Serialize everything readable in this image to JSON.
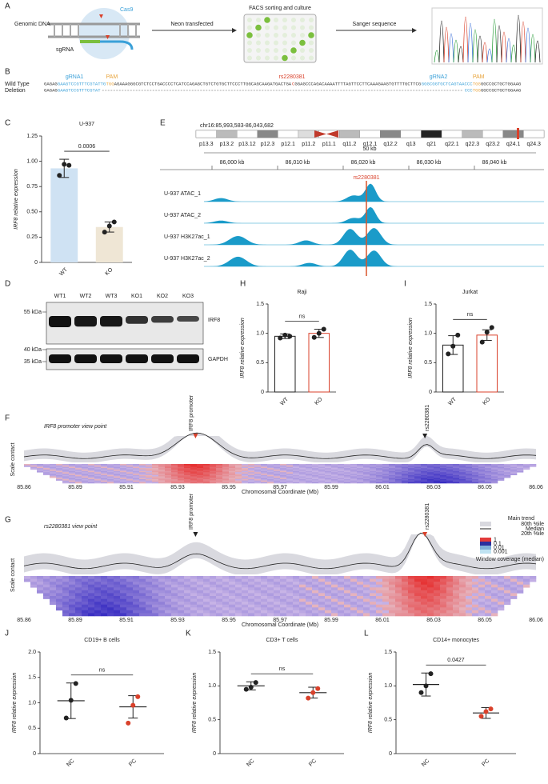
{
  "panels": [
    "A",
    "B",
    "C",
    "D",
    "E",
    "F",
    "G",
    "H",
    "I",
    "J",
    "K",
    "L"
  ],
  "schematic": {
    "genomic_dna": "Genomic DNA",
    "cas9": "Cas9",
    "sgrna": "sgRNA",
    "step1": "Neon transfected",
    "step2": "FACS sorting and culture",
    "step3": "Sanger sequence"
  },
  "sequence": {
    "rows": [
      "Wild Type",
      "Deletion"
    ],
    "gRNA1": "gRNA1",
    "pam1": "PAM",
    "snp": "rs2280381",
    "gRNA2": "gRNA2",
    "pam2": "PAM",
    "wild_type": [
      {
        "text": "GAGAG",
        "color": "#333333"
      },
      {
        "text": "GAAGTCCGTTTCGTATTG",
        "color": "#3aa0d8"
      },
      {
        "text": "TGG",
        "color": "#e8a33a"
      },
      {
        "text": "AGAAAGGGCGTCTCCTGACCCCTCATCCAGAGCTGTCTGTGCTTCCCTTGGCAGCAAGATGACTGA",
        "color": "#333333"
      },
      {
        "text": "C",
        "color": "#d9412b"
      },
      {
        "text": "GGAGCCCAGACAAAATTTTAGTTCCTTCAAAGAAGTGTTTTGCTTCG",
        "color": "#333333"
      },
      {
        "text": "GGGCGGTGCTCAGTAACCC",
        "color": "#3aa0d8"
      },
      {
        "text": "TGG",
        "color": "#e8a33a"
      },
      {
        "text": "GGCCGCTGCTGGAAG",
        "color": "#333333"
      }
    ],
    "deletion_head": [
      {
        "text": "GAGAG",
        "color": "#333333"
      },
      {
        "text": "GAAGTCCGTTTCGTAT",
        "color": "#3aa0d8"
      }
    ],
    "deletion_tail": [
      {
        "text": "CCC",
        "color": "#3aa0d8"
      },
      {
        "text": "TGG",
        "color": "#e8a33a"
      },
      {
        "text": "GGCCGCTGCTGGAAG",
        "color": "#333333"
      }
    ]
  },
  "western": {
    "lanes": [
      "WT1",
      "WT2",
      "WT3",
      "KO1",
      "KO2",
      "KO3"
    ],
    "markers": [
      "55 kDa",
      "40 kDa",
      "35 kDa"
    ],
    "proteins": [
      "IRF8",
      "GAPDH"
    ]
  },
  "genome": {
    "locus": "chr16:85,993,583-86,043,682",
    "cytobands": [
      "p13.3",
      "p13.2",
      "p13.12",
      "p12.3",
      "p12.1",
      "p11.2",
      "p11.1",
      "q11.2",
      "q12.1",
      "q12.2",
      "q13",
      "q21",
      "q22.1",
      "q22.3",
      "q23.2",
      "q24.1",
      "q24.3"
    ],
    "scale": "50 kb",
    "coordinates": [
      "86,000 kb",
      "86,010 kb",
      "86,020 kb",
      "86,030 kb",
      "86,040 kb"
    ],
    "snp": "rs2280381",
    "tracks": [
      "U-937 ATAC_1",
      "U-937 ATAC_2",
      "U-937 H3K27ac_1",
      "U-937 H3K27ac_2"
    ]
  },
  "hic": [
    {
      "title": "IRF8 promoter view point",
      "promoter": "IRF8 promoter",
      "snp": "rs2280381",
      "ylabel": "Scale contact",
      "xlabel": "Chromosomal Coordinate (Mb)",
      "xticks": [
        "85.86",
        "85.89",
        "85.91",
        "85.93",
        "85.95",
        "85.97",
        "85.99",
        "86.01",
        "86.03",
        "86.05",
        "86.06"
      ]
    },
    {
      "title": "rs2280381 view point",
      "promoter": "IRF8 promoter",
      "snp": "rs2280381",
      "ylabel": "Scale contact",
      "xlabel": "Chromosomal Coordinate (Mb)",
      "xticks": [
        "85.86",
        "85.89",
        "85.91",
        "85.93",
        "85.95",
        "85.97",
        "85.99",
        "86.01",
        "86.03",
        "86.05",
        "86.06"
      ],
      "legend": {
        "title": "Main trend",
        "upper": "80th %ile",
        "median": "Median",
        "lower": "20th %ile",
        "scale": [
          "1",
          "0.1",
          "0.01",
          "0.001"
        ],
        "coverage": "Window coverage (median)"
      }
    }
  ],
  "chart_data": [
    {
      "type": "bar",
      "title": "U-937",
      "ylabel": "IRF8 relative expression",
      "categories": [
        "WT",
        "KO"
      ],
      "values": [
        0.93,
        0.35
      ],
      "errors": [
        0.09,
        0.05
      ],
      "points": [
        [
          0.86,
          0.97,
          0.96
        ],
        [
          0.3,
          0.36,
          0.4
        ]
      ],
      "colors": [
        "#cfe2f3",
        "#efe6d5"
      ],
      "edge_colors": [
        "none",
        "none"
      ],
      "point_colors": [
        "#222222",
        "#222222"
      ],
      "annotation": "0.0006",
      "ylim": [
        0,
        1.25
      ],
      "yticks": [
        0,
        0.25,
        {
          "value": 0.5,
          "label": "0.50"
        },
        0.75,
        {
          "value": 1,
          "label": "1.00"
        },
        1.25
      ]
    },
    {
      "type": "bar",
      "title": "Raji",
      "ylabel": "IRF8 relative expression",
      "categories": [
        "WT",
        "KO"
      ],
      "values": [
        0.95,
        1.0
      ],
      "errors": [
        0.04,
        0.07
      ],
      "points": [
        [
          0.92,
          0.97,
          0.95
        ],
        [
          0.93,
          1.0,
          1.07
        ]
      ],
      "colors": [
        "#ffffff",
        "#ffffff"
      ],
      "edge_colors": [
        "#222222",
        "#d9412b"
      ],
      "point_colors": [
        "#222222",
        "#222222"
      ],
      "annotation": "ns",
      "ylim": [
        0,
        1.5
      ],
      "yticks": [
        0,
        0.5,
        {
          "value": 1,
          "label": "1.0"
        },
        1.5
      ]
    },
    {
      "type": "bar",
      "title": "Jurkat",
      "ylabel": "IRF8 relative expression",
      "categories": [
        "WT",
        "KO"
      ],
      "values": [
        0.8,
        0.97
      ],
      "errors": [
        0.16,
        0.09
      ],
      "points": [
        [
          0.65,
          0.78,
          0.97
        ],
        [
          0.85,
          1.02,
          1.1
        ]
      ],
      "colors": [
        "#ffffff",
        "#ffffff"
      ],
      "edge_colors": [
        "#222222",
        "#d9412b"
      ],
      "point_colors": [
        "#222222",
        "#222222"
      ],
      "annotation": "ns",
      "ylim": [
        0,
        1.5
      ],
      "yticks": [
        0,
        0.5,
        {
          "value": 1,
          "label": "1.0"
        },
        1.5
      ]
    },
    {
      "type": "dot",
      "title": "CD19+ B cells",
      "ylabel": "IRF8 relative expression",
      "categories": [
        "NC",
        "PC"
      ],
      "values": [
        1.04,
        0.92
      ],
      "errors": [
        0.35,
        0.22
      ],
      "points": [
        [
          0.7,
          1.05,
          1.38
        ],
        [
          0.6,
          0.95,
          1.12
        ]
      ],
      "point_colors": [
        "#222222",
        "#d9412b"
      ],
      "annotation": "ns",
      "ylim": [
        0,
        2
      ],
      "yticks": [
        0,
        0.5,
        {
          "value": 1,
          "label": "1.0"
        },
        1.5,
        {
          "value": 2,
          "label": "2.0"
        }
      ]
    },
    {
      "type": "dot",
      "title": "CD3+ T cells",
      "ylabel": "IRF8 relative expression",
      "categories": [
        "NC",
        "PC"
      ],
      "values": [
        1.0,
        0.9
      ],
      "errors": [
        0.06,
        0.08
      ],
      "points": [
        [
          0.95,
          0.98,
          1.05
        ],
        [
          0.82,
          0.9,
          0.96
        ]
      ],
      "point_colors": [
        "#222222",
        "#d9412b"
      ],
      "annotation": "ns",
      "ylim": [
        0,
        1.5
      ],
      "yticks": [
        0,
        0.5,
        {
          "value": 1,
          "label": "1.0"
        },
        1.5
      ]
    },
    {
      "type": "dot",
      "title": "CD14+ monocytes",
      "ylabel": "IRF8 relative expression",
      "categories": [
        "NC",
        "PC"
      ],
      "values": [
        1.02,
        0.6
      ],
      "errors": [
        0.17,
        0.08
      ],
      "points": [
        [
          0.9,
          1.0,
          1.18
        ],
        [
          0.55,
          0.62,
          0.66
        ]
      ],
      "point_colors": [
        "#222222",
        "#d9412b"
      ],
      "annotation": "0.0427",
      "ylim": [
        0,
        1.5
      ],
      "yticks": [
        0,
        0.5,
        {
          "value": 1,
          "label": "1.0"
        },
        1.5
      ]
    }
  ]
}
